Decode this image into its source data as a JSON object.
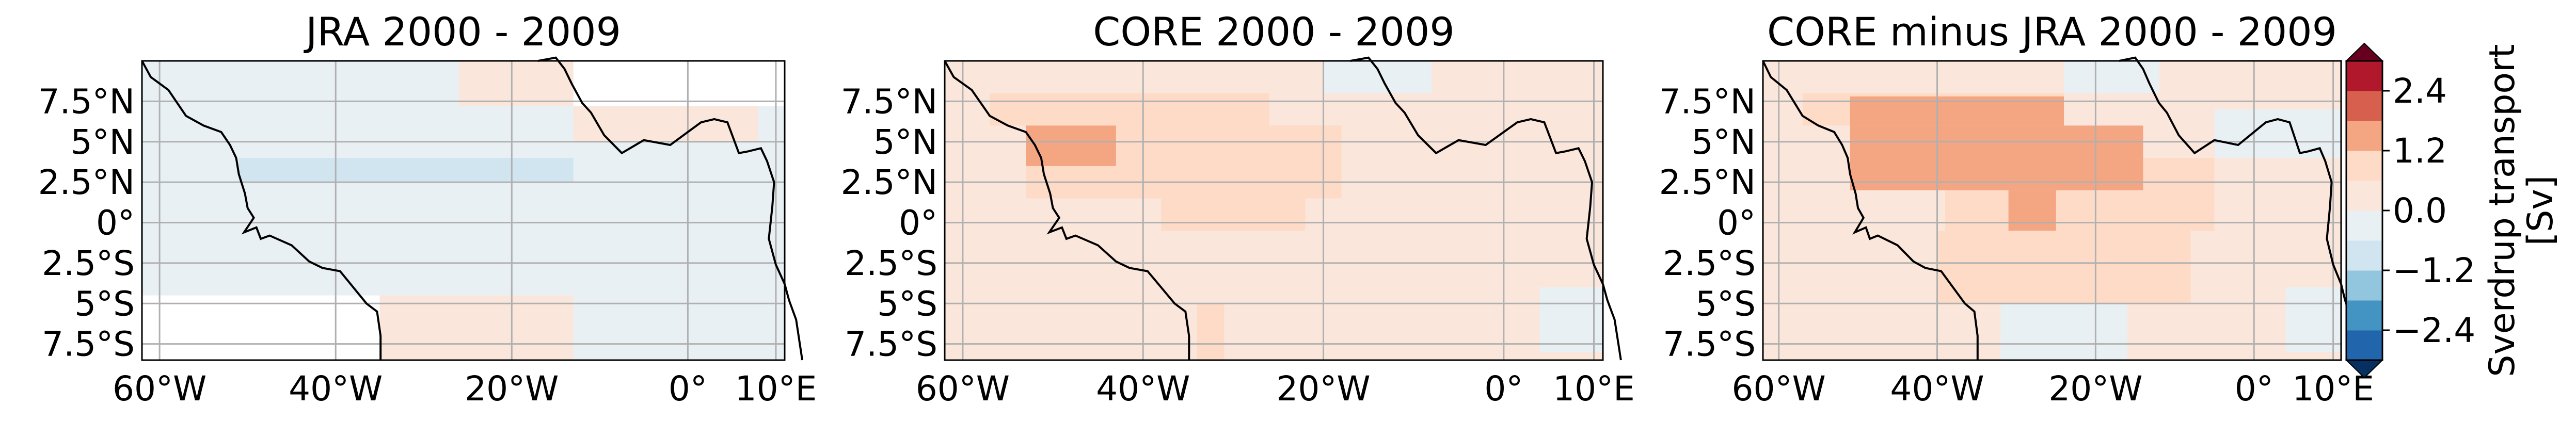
{
  "chart_data": [
    {
      "type": "heatmap",
      "title": "JRA 2000 - 2009",
      "x_ticks": [
        "60°W",
        "40°W",
        "20°W",
        "0°",
        "10°E"
      ],
      "y_ticks": [
        "7.5°N",
        "5°N",
        "2.5°N",
        "0°",
        "2.5°S",
        "5°S",
        "7.5°S"
      ],
      "xlim": [
        -62,
        11
      ],
      "ylim": [
        -8.5,
        10
      ],
      "cells": [
        {
          "lon": [
            -62,
            -26
          ],
          "lat": [
            7.2,
            10
          ],
          "value": -0.2
        },
        {
          "lon": [
            -26,
            -13
          ],
          "lat": [
            7.2,
            10
          ],
          "value": 0.2
        },
        {
          "lon": [
            -62,
            11
          ],
          "lat": [
            4,
            7.2
          ],
          "value": -0.2
        },
        {
          "lon": [
            -13,
            8
          ],
          "lat": [
            5,
            7.2
          ],
          "value": 0.2
        },
        {
          "lon": [
            -62,
            11
          ],
          "lat": [
            2.5,
            4
          ],
          "value": -0.2
        },
        {
          "lon": [
            -51,
            -13
          ],
          "lat": [
            2.5,
            4
          ],
          "value": -0.8
        },
        {
          "lon": [
            -62,
            11
          ],
          "lat": [
            -4.5,
            2.5
          ],
          "value": -0.2
        },
        {
          "lon": [
            -35,
            -13
          ],
          "lat": [
            -8.5,
            -4.5
          ],
          "value": 0.2
        },
        {
          "lon": [
            -13,
            11
          ],
          "lat": [
            -8.5,
            -4.5
          ],
          "value": -0.2
        }
      ]
    },
    {
      "type": "heatmap",
      "title": "CORE 2000 - 2009",
      "x_ticks": [
        "60°W",
        "40°W",
        "20°W",
        "0°",
        "10°E"
      ],
      "y_ticks": [
        "7.5°N",
        "5°N",
        "2.5°N",
        "0°",
        "2.5°S",
        "5°S",
        "7.5°S"
      ],
      "xlim": [
        -62,
        11
      ],
      "ylim": [
        -8.5,
        10
      ],
      "cells": [
        {
          "lon": [
            -62,
            11
          ],
          "lat": [
            -8.5,
            10
          ],
          "value": 0.2
        },
        {
          "lon": [
            -20,
            -8
          ],
          "lat": [
            8,
            10
          ],
          "value": -0.2
        },
        {
          "lon": [
            -57,
            -26
          ],
          "lat": [
            6,
            8
          ],
          "value": 0.6
        },
        {
          "lon": [
            -53,
            -18
          ],
          "lat": [
            1.5,
            6
          ],
          "value": 0.6
        },
        {
          "lon": [
            -53,
            -43
          ],
          "lat": [
            3.5,
            6
          ],
          "value": 1.8
        },
        {
          "lon": [
            -38,
            -22
          ],
          "lat": [
            -0.5,
            1.5
          ],
          "value": 0.6
        },
        {
          "lon": [
            -34,
            -31
          ],
          "lat": [
            -8.5,
            -5
          ],
          "value": 0.6
        },
        {
          "lon": [
            4,
            11
          ],
          "lat": [
            -8,
            -4
          ],
          "value": -0.2
        }
      ]
    },
    {
      "type": "heatmap",
      "title": "CORE minus JRA 2000 - 2009",
      "x_ticks": [
        "60°W",
        "40°W",
        "20°W",
        "0°",
        "10°E"
      ],
      "y_ticks": [
        "7.5°N",
        "5°N",
        "2.5°N",
        "0°",
        "2.5°S",
        "5°S",
        "7.5°S"
      ],
      "xlim": [
        -62,
        11
      ],
      "ylim": [
        -8.5,
        10
      ],
      "cells": [
        {
          "lon": [
            -62,
            11
          ],
          "lat": [
            -8.5,
            10
          ],
          "value": 0.2
        },
        {
          "lon": [
            -24,
            -12
          ],
          "lat": [
            8,
            10
          ],
          "value": -0.2
        },
        {
          "lon": [
            -5,
            11
          ],
          "lat": [
            4,
            7
          ],
          "value": -0.2
        },
        {
          "lon": [
            -57,
            -24
          ],
          "lat": [
            6,
            8
          ],
          "value": 0.8
        },
        {
          "lon": [
            -51,
            -24
          ],
          "lat": [
            6,
            7.8
          ],
          "value": 1.8
        },
        {
          "lon": [
            -51,
            -14
          ],
          "lat": [
            2,
            6
          ],
          "value": 1.8
        },
        {
          "lon": [
            -14,
            -5
          ],
          "lat": [
            2,
            4
          ],
          "value": 0.8
        },
        {
          "lon": [
            -39,
            -5
          ],
          "lat": [
            -0.5,
            2
          ],
          "value": 0.8
        },
        {
          "lon": [
            -31,
            -25
          ],
          "lat": [
            -0.5,
            2
          ],
          "value": 1.8
        },
        {
          "lon": [
            -40,
            -8
          ],
          "lat": [
            -5,
            -0.5
          ],
          "value": 0.8
        },
        {
          "lon": [
            -32,
            -16
          ],
          "lat": [
            -8.5,
            -5
          ],
          "value": -0.2
        },
        {
          "lon": [
            4,
            11
          ],
          "lat": [
            -8,
            -4
          ],
          "value": -0.2
        }
      ]
    }
  ],
  "colorbar": {
    "label": "Sverdrup transport\n[Sv]",
    "tick_labels": [
      "2.4",
      "1.2",
      "0.0",
      "−1.2",
      "−2.4"
    ],
    "tick_values": [
      2.4,
      1.2,
      0.0,
      -1.2,
      -2.4
    ],
    "range": [
      -3.0,
      3.0
    ],
    "extend": "both",
    "colors": [
      "#2166ac",
      "#4393c3",
      "#92c5de",
      "#d1e5f0",
      "#e8f0f4",
      "#fbe6dc",
      "#fddbc7",
      "#f4a582",
      "#d6604d",
      "#b2182b"
    ],
    "under_color": "#053061",
    "over_color": "#67001f"
  },
  "coastline_color": "#000000",
  "grid_color": "#b0b0b0"
}
